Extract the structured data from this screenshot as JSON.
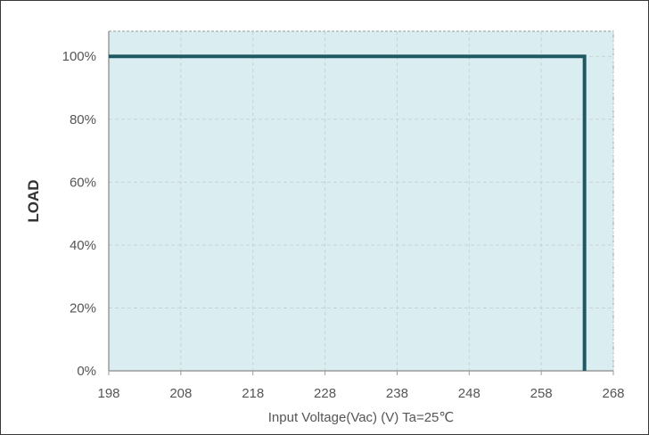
{
  "chart_data": {
    "type": "line",
    "title": "",
    "xlabel": "Input Voltage(Vac) (V) Ta=25℃",
    "ylabel": "LOAD",
    "xlim": [
      198,
      268
    ],
    "ylim": [
      0,
      108
    ],
    "x_ticks": [
      198,
      208,
      218,
      228,
      238,
      248,
      258,
      268
    ],
    "y_ticks": [
      {
        "value": 0,
        "label": "0%"
      },
      {
        "value": 20,
        "label": "20%"
      },
      {
        "value": 40,
        "label": "40%"
      },
      {
        "value": 60,
        "label": "60%"
      },
      {
        "value": 80,
        "label": "80%"
      },
      {
        "value": 100,
        "label": "100%"
      }
    ],
    "grid": true,
    "legend": "none",
    "series": [
      {
        "x": [
          198,
          264,
          264
        ],
        "y": [
          100,
          100,
          0
        ]
      }
    ],
    "colors": {
      "plot_background": "#daeef2",
      "line": "#1f5a63",
      "grid": "#c7d3d6",
      "axis": "#9a9a9a",
      "tick_text": "#555555"
    }
  }
}
